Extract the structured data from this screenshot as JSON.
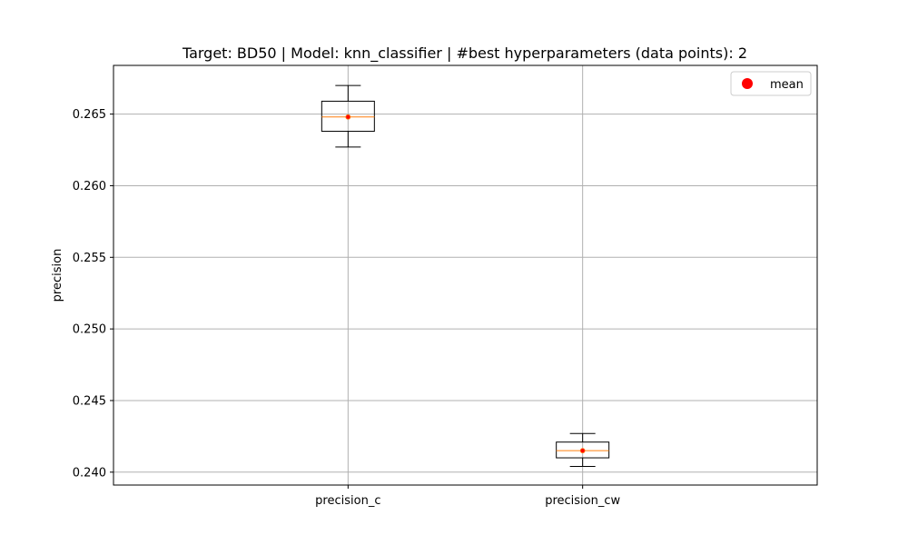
{
  "chart_data": {
    "type": "box",
    "title": "Target: BD50 | Model: knn_classifier | #best hyperparameters (data points): 2",
    "xlabel": "",
    "ylabel": "precision",
    "categories": [
      "precision_c",
      "precision_cw"
    ],
    "boxes": [
      {
        "name": "precision_c",
        "whisker_low": 0.2627,
        "q1": 0.2638,
        "median": 0.2648,
        "q3": 0.2659,
        "whisker_high": 0.267,
        "mean": 0.2648
      },
      {
        "name": "precision_cw",
        "whisker_low": 0.2404,
        "q1": 0.241,
        "median": 0.2415,
        "q3": 0.2421,
        "whisker_high": 0.2427,
        "mean": 0.2415
      }
    ],
    "yticks": [
      "0.240",
      "0.245",
      "0.250",
      "0.255",
      "0.260",
      "0.265"
    ],
    "ylim": [
      0.2391,
      0.2684
    ],
    "grid": true,
    "legend": {
      "position": "top-right",
      "entries": [
        "mean"
      ]
    },
    "colors": {
      "box": "#000000",
      "median": "#ff7f0e",
      "mean": "#ff0000",
      "grid": "#b0b0b0"
    }
  }
}
